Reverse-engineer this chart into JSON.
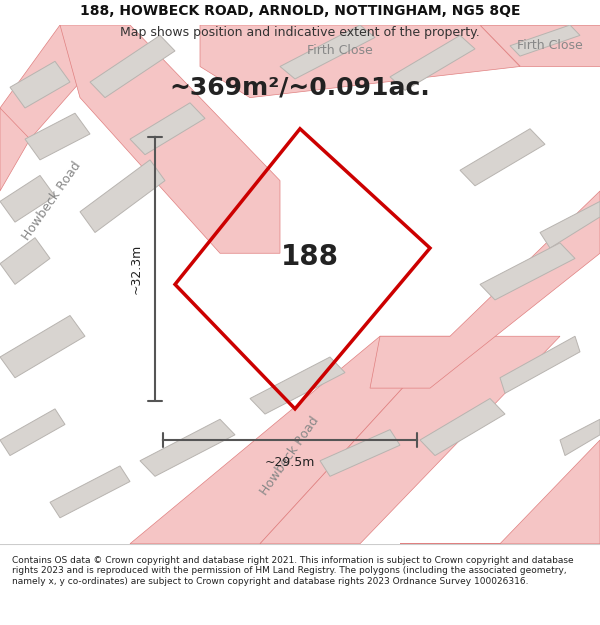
{
  "title_line1": "188, HOWBECK ROAD, ARNOLD, NOTTINGHAM, NG5 8QE",
  "title_line2": "Map shows position and indicative extent of the property.",
  "area_text": "~369m²/~0.091ac.",
  "label_188": "188",
  "dim_vertical": "~32.3m",
  "dim_horizontal": "~29.5m",
  "footer_text": "Contains OS data © Crown copyright and database right 2021. This information is subject to Crown copyright and database rights 2023 and is reproduced with the permission of HM Land Registry. The polygons (including the associated geometry, namely x, y co-ordinates) are subject to Crown copyright and database rights 2023 Ordnance Survey 100026316.",
  "bg_color": "#f5f5f0",
  "map_bg": "#f0eeec",
  "plot_outline_color": "#cc0000",
  "plot_fill_color": "#e8e4e0",
  "road_color": "#f5c5c5",
  "road_outline_color": "#e08080",
  "building_color": "#d8d4d0",
  "building_outline_color": "#b8b4b0",
  "dim_line_color": "#555555",
  "road_label_color": "#888888",
  "footer_bg": "#ffffff",
  "title_fontsize": 10,
  "subtitle_fontsize": 9,
  "area_fontsize": 18,
  "label_fontsize": 20,
  "dim_fontsize": 9,
  "road_label_fontsize": 9,
  "footer_fontsize": 6.5
}
